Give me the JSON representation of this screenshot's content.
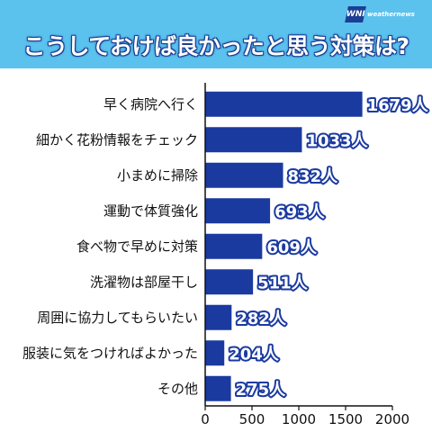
{
  "header": {
    "title": "こうしておけば良かったと思う対策は?",
    "logo_mark": "WNI",
    "logo_text": "weathernews"
  },
  "colors": {
    "header_bg": "#5bc2ee",
    "bar": "#1b3aa0",
    "axis": "#111111"
  },
  "chart_data": {
    "type": "bar",
    "orientation": "horizontal",
    "title": "こうしておけば良かったと思う対策は?",
    "categories": [
      "早く病院へ行く",
      "細かく花粉情報をチェック",
      "小まめに掃除",
      "運動で体質強化",
      "食べ物で早めに対策",
      "洗濯物は部屋干し",
      "周囲に協力してもらいたい",
      "服装に気をつければよかった",
      "その他"
    ],
    "values": [
      1679,
      1033,
      832,
      693,
      609,
      511,
      282,
      204,
      275
    ],
    "value_labels": [
      "1679人",
      "1033人",
      "832人",
      "693人",
      "609人",
      "511人",
      "282人",
      "204人",
      "275人"
    ],
    "xlim": [
      0,
      2000
    ],
    "xticks": [
      0,
      500,
      1000,
      1500,
      2000
    ],
    "xtick_labels": [
      "0",
      "500",
      "1000",
      "1500",
      "2000"
    ],
    "grid": false,
    "legend": "none"
  }
}
